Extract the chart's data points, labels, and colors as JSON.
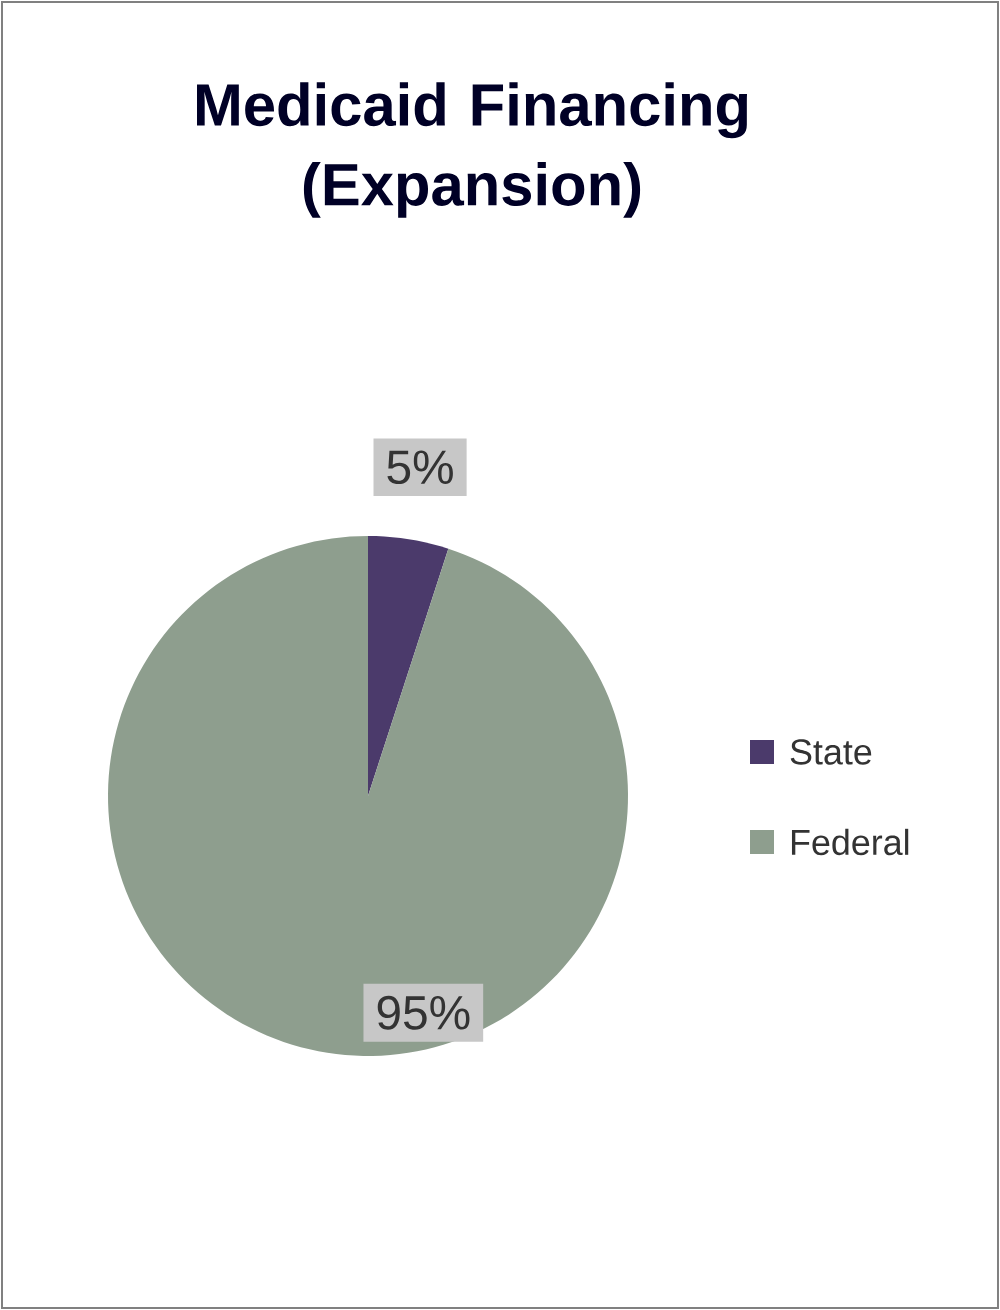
{
  "chart_data": {
    "type": "pie",
    "title": "Medicaid Financing (Expansion)",
    "categories": [
      "State",
      "Federal"
    ],
    "values": [
      5,
      95
    ],
    "value_labels": [
      "5%",
      "95%"
    ],
    "colors": [
      "#4b3a6b",
      "#8e9e8e"
    ],
    "legend": "right"
  }
}
